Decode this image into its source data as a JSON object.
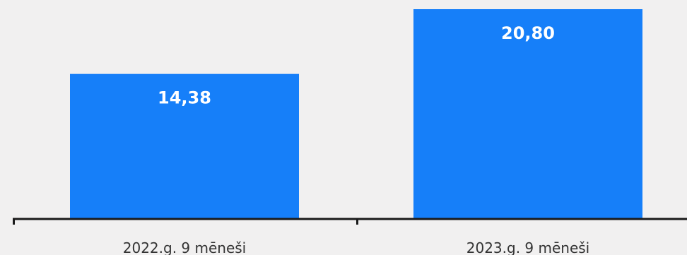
{
  "chart_data": {
    "type": "bar",
    "categories": [
      "2022.g. 9 mēneši",
      "2023.g. 9 mēneši"
    ],
    "values": [
      14.38,
      20.8
    ],
    "data_labels": [
      "14,38",
      "20,80"
    ],
    "title": "",
    "xlabel": "",
    "ylabel": "",
    "ylim": [
      0,
      21.5
    ],
    "grid": false,
    "legend": "none",
    "colors": {
      "bar": "#167ff9",
      "axis": "#1a1a1a",
      "background": "#f1f0f0",
      "data_label": "#ffffff",
      "tick_label": "#333333"
    }
  }
}
